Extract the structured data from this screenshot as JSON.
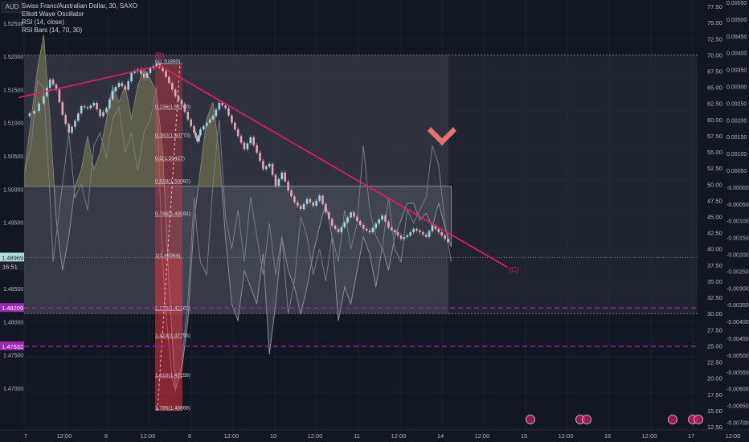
{
  "header": {
    "currency_badge": "AUD",
    "title": "Swiss Franc/Australian Dollar, 30, SAXO",
    "indicators": [
      "Elliott Wave Oscillator",
      "RSI (14, close)",
      "RSI Bars (14, 70, 30)"
    ]
  },
  "chart_data": {
    "type": "line",
    "symbol": "CHFAUD",
    "timeframe": "30",
    "x_ticks": [
      "7",
      "12:00",
      "8",
      "12:00",
      "9",
      "12:00",
      "10",
      "12:00",
      "11",
      "12:00",
      "14",
      "12:00",
      "15",
      "12:00",
      "16",
      "12:00",
      "17",
      "12:00"
    ],
    "left_axis": {
      "ticks": [
        "1.52500",
        "1.52000",
        "1.51500",
        "1.51000",
        "1.50500",
        "1.50000",
        "1.49500",
        "1.49000",
        "1.48500",
        "1.48000",
        "1.47500",
        "1.47000"
      ],
      "range": [
        1.4637,
        1.5285
      ]
    },
    "rsi_axis": {
      "ticks": [
        "77.50",
        "75.00",
        "72.50",
        "70.00",
        "67.50",
        "65.00",
        "62.50",
        "60.00",
        "57.50",
        "55.00",
        "52.50",
        "50.00",
        "47.50",
        "45.00",
        "42.50",
        "40.00",
        "37.50",
        "35.00",
        "32.50",
        "30.00",
        "27.50",
        "25.00",
        "22.50",
        "20.00",
        "17.50",
        "15.00",
        "12.50"
      ],
      "range": [
        12.0,
        78.5
      ],
      "overbought": 70,
      "oversold": 30
    },
    "ewo_axis": {
      "ticks": [
        "0.00550",
        "0.00500",
        "0.00450",
        "0.00400",
        "0.00350",
        "0.00300",
        "0.00250",
        "0.00200",
        "0.00150",
        "0.00100",
        "0.00050",
        "-0.00000",
        "-0.00050",
        "-0.00100",
        "-0.00150",
        "-0.00200",
        "-0.00250",
        "-0.00300",
        "-0.00350",
        "-0.00400",
        "-0.00450",
        "-0.00500",
        "-0.00550",
        "-0.00600",
        "-0.00650",
        "-0.00700"
      ]
    },
    "price_series": [
      [
        0,
        1.511
      ],
      [
        3,
        1.5118
      ],
      [
        6,
        1.514
      ],
      [
        8,
        1.5165
      ],
      [
        10,
        1.515
      ],
      [
        12,
        1.5112
      ],
      [
        14,
        1.5085
      ],
      [
        16,
        1.5103
      ],
      [
        18,
        1.5125
      ],
      [
        20,
        1.5122
      ],
      [
        22,
        1.513
      ],
      [
        24,
        1.511
      ],
      [
        26,
        1.5122
      ],
      [
        28,
        1.5148
      ],
      [
        30,
        1.516
      ],
      [
        32,
        1.515
      ],
      [
        34,
        1.5175
      ],
      [
        36,
        1.518
      ],
      [
        38,
        1.5168
      ],
      [
        40,
        1.5182
      ],
      [
        42,
        1.5189
      ],
      [
        44,
        1.5178
      ],
      [
        46,
        1.516
      ],
      [
        48,
        1.514
      ],
      [
        50,
        1.5128
      ],
      [
        52,
        1.5105
      ],
      [
        54,
        1.5085
      ],
      [
        55,
        1.5072
      ],
      [
        56,
        1.509
      ],
      [
        58,
        1.51
      ],
      [
        60,
        1.511
      ],
      [
        62,
        1.513
      ],
      [
        64,
        1.5122
      ],
      [
        66,
        1.51
      ],
      [
        68,
        1.508
      ],
      [
        70,
        1.506
      ],
      [
        72,
        1.5078
      ],
      [
        74,
        1.5055
      ],
      [
        76,
        1.503
      ],
      [
        78,
        1.5038
      ],
      [
        80,
        1.5005
      ],
      [
        82,
        1.5025
      ],
      [
        84,
        1.4998
      ],
      [
        86,
        1.498
      ],
      [
        88,
        1.497
      ],
      [
        90,
        1.4985
      ],
      [
        92,
        1.4975
      ],
      [
        94,
        1.499
      ],
      [
        96,
        1.4965
      ],
      [
        98,
        1.4945
      ],
      [
        100,
        1.4935
      ],
      [
        102,
        1.495
      ],
      [
        104,
        1.4965
      ],
      [
        106,
        1.4952
      ],
      [
        108,
        1.494
      ],
      [
        110,
        1.4935
      ],
      [
        112,
        1.4948
      ],
      [
        114,
        1.496
      ],
      [
        116,
        1.4942
      ],
      [
        118,
        1.4935
      ],
      [
        120,
        1.4925
      ],
      [
        122,
        1.493
      ],
      [
        124,
        1.494
      ],
      [
        126,
        1.4935
      ],
      [
        128,
        1.4928
      ],
      [
        130,
        1.4945
      ],
      [
        132,
        1.4935
      ],
      [
        134,
        1.4925
      ],
      [
        136,
        1.4915
      ]
    ],
    "rsi_series": [
      [
        0,
        52
      ],
      [
        2,
        56
      ],
      [
        4,
        66
      ],
      [
        6,
        65
      ],
      [
        8,
        48
      ],
      [
        9,
        38
      ],
      [
        10,
        42
      ],
      [
        12,
        50
      ],
      [
        14,
        58
      ],
      [
        16,
        48
      ],
      [
        18,
        50
      ],
      [
        20,
        46
      ],
      [
        22,
        56
      ],
      [
        24,
        58
      ],
      [
        26,
        54
      ],
      [
        28,
        60
      ],
      [
        30,
        62
      ],
      [
        32,
        55
      ],
      [
        34,
        58
      ],
      [
        36,
        52
      ],
      [
        38,
        58
      ],
      [
        40,
        60
      ],
      [
        42,
        65
      ],
      [
        43,
        50
      ],
      [
        44,
        38
      ],
      [
        45,
        30
      ],
      [
        46,
        25
      ],
      [
        47,
        20
      ],
      [
        48,
        18
      ],
      [
        50,
        22
      ],
      [
        52,
        32
      ],
      [
        54,
        48
      ],
      [
        55,
        42
      ],
      [
        56,
        38
      ],
      [
        58,
        36
      ],
      [
        60,
        50
      ],
      [
        62,
        60
      ],
      [
        64,
        45
      ],
      [
        66,
        40
      ],
      [
        68,
        46
      ],
      [
        70,
        38
      ],
      [
        72,
        48
      ],
      [
        74,
        42
      ],
      [
        76,
        36
      ],
      [
        78,
        44
      ],
      [
        80,
        36
      ],
      [
        82,
        42
      ],
      [
        84,
        30
      ],
      [
        86,
        35
      ],
      [
        88,
        45
      ],
      [
        90,
        42
      ],
      [
        92,
        36
      ],
      [
        94,
        40
      ],
      [
        96,
        35
      ],
      [
        98,
        42
      ],
      [
        100,
        38
      ],
      [
        102,
        46
      ],
      [
        104,
        40
      ],
      [
        106,
        44
      ],
      [
        108,
        56
      ],
      [
        110,
        46
      ],
      [
        112,
        42
      ],
      [
        114,
        40
      ],
      [
        116,
        48
      ],
      [
        118,
        40
      ],
      [
        120,
        38
      ],
      [
        122,
        46
      ],
      [
        124,
        44
      ],
      [
        126,
        46
      ],
      [
        128,
        48
      ],
      [
        130,
        56
      ],
      [
        132,
        53
      ],
      [
        134,
        44
      ],
      [
        136,
        38
      ]
    ],
    "ewo_series": [
      [
        0,
        0.0005
      ],
      [
        4,
        0.0035
      ],
      [
        6,
        0.0045
      ],
      [
        8,
        0.002
      ],
      [
        10,
        -0.001
      ],
      [
        12,
        -0.0025
      ],
      [
        14,
        -0.0015
      ],
      [
        16,
        0.0
      ],
      [
        18,
        0.0005
      ],
      [
        20,
        0.0015
      ],
      [
        22,
        0.0005
      ],
      [
        24,
        0.001
      ],
      [
        26,
        0.002
      ],
      [
        28,
        0.003
      ],
      [
        30,
        0.0025
      ],
      [
        32,
        0.003
      ],
      [
        34,
        0.002
      ],
      [
        36,
        0.003
      ],
      [
        38,
        0.0035
      ],
      [
        40,
        0.0032
      ],
      [
        42,
        0.0028
      ],
      [
        44,
        0.001
      ],
      [
        46,
        -0.003
      ],
      [
        48,
        -0.006
      ],
      [
        50,
        -0.0055
      ],
      [
        52,
        -0.004
      ],
      [
        54,
        -0.001
      ],
      [
        56,
        0.0005
      ],
      [
        58,
        0.002
      ],
      [
        60,
        0.0025
      ],
      [
        62,
        0.001
      ],
      [
        64,
        -0.0015
      ],
      [
        66,
        -0.0035
      ],
      [
        68,
        -0.004
      ],
      [
        70,
        -0.0025
      ],
      [
        72,
        -0.003
      ],
      [
        74,
        -0.0035
      ],
      [
        76,
        -0.002
      ],
      [
        78,
        -0.005
      ],
      [
        80,
        -0.0035
      ],
      [
        82,
        -0.0015
      ],
      [
        84,
        -0.0025
      ],
      [
        86,
        -0.003
      ],
      [
        88,
        -0.0038
      ],
      [
        90,
        -0.003
      ],
      [
        92,
        -0.002
      ],
      [
        94,
        -0.0012
      ],
      [
        96,
        -0.0005
      ],
      [
        98,
        -0.0015
      ],
      [
        100,
        -0.004
      ],
      [
        102,
        -0.003
      ],
      [
        104,
        -0.0035
      ],
      [
        106,
        -0.0025
      ],
      [
        108,
        -0.0015
      ],
      [
        110,
        -0.002
      ],
      [
        112,
        -0.003
      ],
      [
        114,
        -0.0018
      ],
      [
        116,
        -0.0025
      ],
      [
        118,
        -0.0015
      ],
      [
        120,
        -0.001
      ],
      [
        122,
        -0.0005
      ],
      [
        124,
        -0.0005
      ],
      [
        126,
        -0.001
      ],
      [
        128,
        -0.0008
      ],
      [
        130,
        -0.0012
      ],
      [
        132,
        -0.0005
      ],
      [
        134,
        -0.0012
      ],
      [
        136,
        -0.0018
      ]
    ],
    "trendline": {
      "from": [
        -2,
        1.5138
      ],
      "to": [
        154,
        1.4882
      ],
      "peak": [
        43,
        1.5186
      ]
    },
    "wave_labels": [
      {
        "text": "(B)",
        "x": 43,
        "y": 1.5198
      },
      {
        "text": "(C)",
        "x": 156,
        "y": 1.4875
      }
    ],
    "fib_levels": [
      {
        "label": "0(1.51890)",
        "price": 1.5189
      },
      {
        "label": "0.236(1.51200)",
        "price": 1.512
      },
      {
        "label": "0.382(1.50773)",
        "price": 1.50773
      },
      {
        "label": "0.5(1.50427)",
        "price": 1.50427
      },
      {
        "label": "0.618(1.50082)",
        "price": 1.50082
      },
      {
        "label": "0.786(1.49591)",
        "price": 1.49591
      },
      {
        "label": "1(1.48964)",
        "price": 1.48964
      },
      {
        "label": "1.272(1.48169)",
        "price": 1.48169
      },
      {
        "label": "1.414(1.47755)",
        "price": 1.47755
      },
      {
        "label": "1.618(1.47159)",
        "price": 1.47159
      },
      {
        "label": "1.786(1.46668)",
        "price": 1.46668
      }
    ],
    "price_tags": [
      {
        "text": "1.48969",
        "price": 1.48969,
        "color": "#b2dfdb"
      },
      {
        "text": "1.48209",
        "price": 1.48209,
        "color": "#9c27b0"
      },
      {
        "text": "1.47632",
        "price": 1.47632,
        "color": "#9c27b0"
      }
    ],
    "countdown_tag": "16:51",
    "horizontal_lines": [
      {
        "price": 1.48209,
        "color": "#9c27b0"
      },
      {
        "price": 1.47632,
        "color": "#9c27b0"
      }
    ],
    "colors": {
      "background": "#131722",
      "candle_up": "#d1d4dc",
      "candle_down": "#d1d4dc",
      "trendline": "#e91e63",
      "fib_zone": "#f23645",
      "hline": "#9c27b0",
      "rsi_line": "#787b86",
      "ewo_fill_pos": "#6b6a4c",
      "ewo_fill_neg": "#4a4e59",
      "rsi_band": "#5d606b"
    }
  }
}
